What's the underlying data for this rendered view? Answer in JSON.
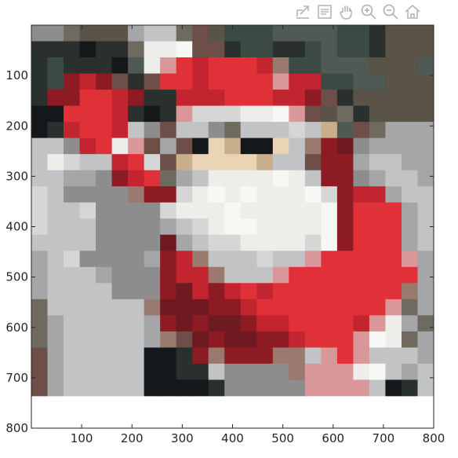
{
  "toolbar": {
    "items": [
      {
        "name": "export-icon"
      },
      {
        "name": "data-tips-icon"
      },
      {
        "name": "pan-hand-icon"
      },
      {
        "name": "zoom-in-icon"
      },
      {
        "name": "zoom-out-icon"
      },
      {
        "name": "home-restore-view-icon"
      }
    ],
    "icon_color": "#b5b5b5"
  },
  "chart_data": {
    "type": "heatmap",
    "title": "",
    "xlabel": "",
    "ylabel": "",
    "xlim": [
      0,
      800
    ],
    "ylim": [
      800,
      0
    ],
    "y_axis_direction": "reverse",
    "grid": false,
    "x_ticks": [
      "100",
      "200",
      "300",
      "400",
      "500",
      "600",
      "700",
      "800"
    ],
    "y_ticks": [
      "100",
      "200",
      "300",
      "400",
      "500",
      "600",
      "700",
      "800"
    ],
    "cell_size": 32,
    "palette": {
      "K": "#14181a",
      "k": "#2a302d",
      "G": "#3c4a44",
      "g": "#4e5a53",
      "O": "#5a5448",
      "o": "#6e6a5f",
      "E": "#8d8d8d",
      "e": "#a4a6a8",
      "L": "#c2c3c5",
      "l": "#d6d6d6",
      "W": "#ededea",
      "w": "#f7f7f3",
      "S": "#e9d5b5",
      "s": "#c9ae8c",
      "R": "#e03038",
      "r": "#c32530",
      "D": "#8c1b24",
      "d": "#6e1a20",
      "P": "#d99799",
      "B": "#6e4e48",
      "b": "#9a7a6e"
    },
    "rows": [
      "EEoOOOeLLoBOGGGggggGGkOOOgg",
      "kkkKkkoWWwBBkGGkkGgGGkOOOgg",
      "kGkkkKgWPRrRRRrbGGgggOOOgOg",
      "kGDrDBkBRRrRRRRPrrGGggOOOog",
      "kDDRRrDkkrrrRRRrrDBkOOOOOoo",
      "KKRRRrkKkPlllWWwPBOokOOOOkO",
      "KkrRRrLEBLLEoLLLlLsgBoeeeEE",
      "LLErRWPBeBKSsKKSLbDdEeeeeEE",
      "LWlLLrRlBsSSSSsLLBDDeLLeeEE",
      "LLeeEDrRoeLWWWWwWLDDEeLLeEE",
      "lLEEEEbDDlWwWwWWWwlDrreLLeE",
      "lLLlEEEElWWWwWWWWWwDRRReLLe",
      "lLLLEEEEeLlWwwWWWWwDRRReLeE",
      "LLLLEEEEdeLllWWWWlwDRRReLLL",
      "eLlEEEEeDrbLLLlLLPRRRRRPeLe",
      "eLLLeEEEDrrbLLLPRRRRRRRReLe",
      "eLLLLEEEDdrDrRrRRRRRRRRbeLe",
      "oLLLLLLbdddDDrRRRRRRRRPoeeE",
      "oeLLLLLeDdDddDrrRRRRrPWeoLe",
      "oeLLLLLebBdDddDDrRRRPwWoeeE",
      "BeLLLLLKKkDbDDDbbLPRPLLLeLe",
      "BeLLLLLKKkkLEEEEbPPPWwLeLLL",
      "BeLLLLLKKKKkEEEEEPPPPLKkLLL"
    ]
  },
  "colorbar": null
}
